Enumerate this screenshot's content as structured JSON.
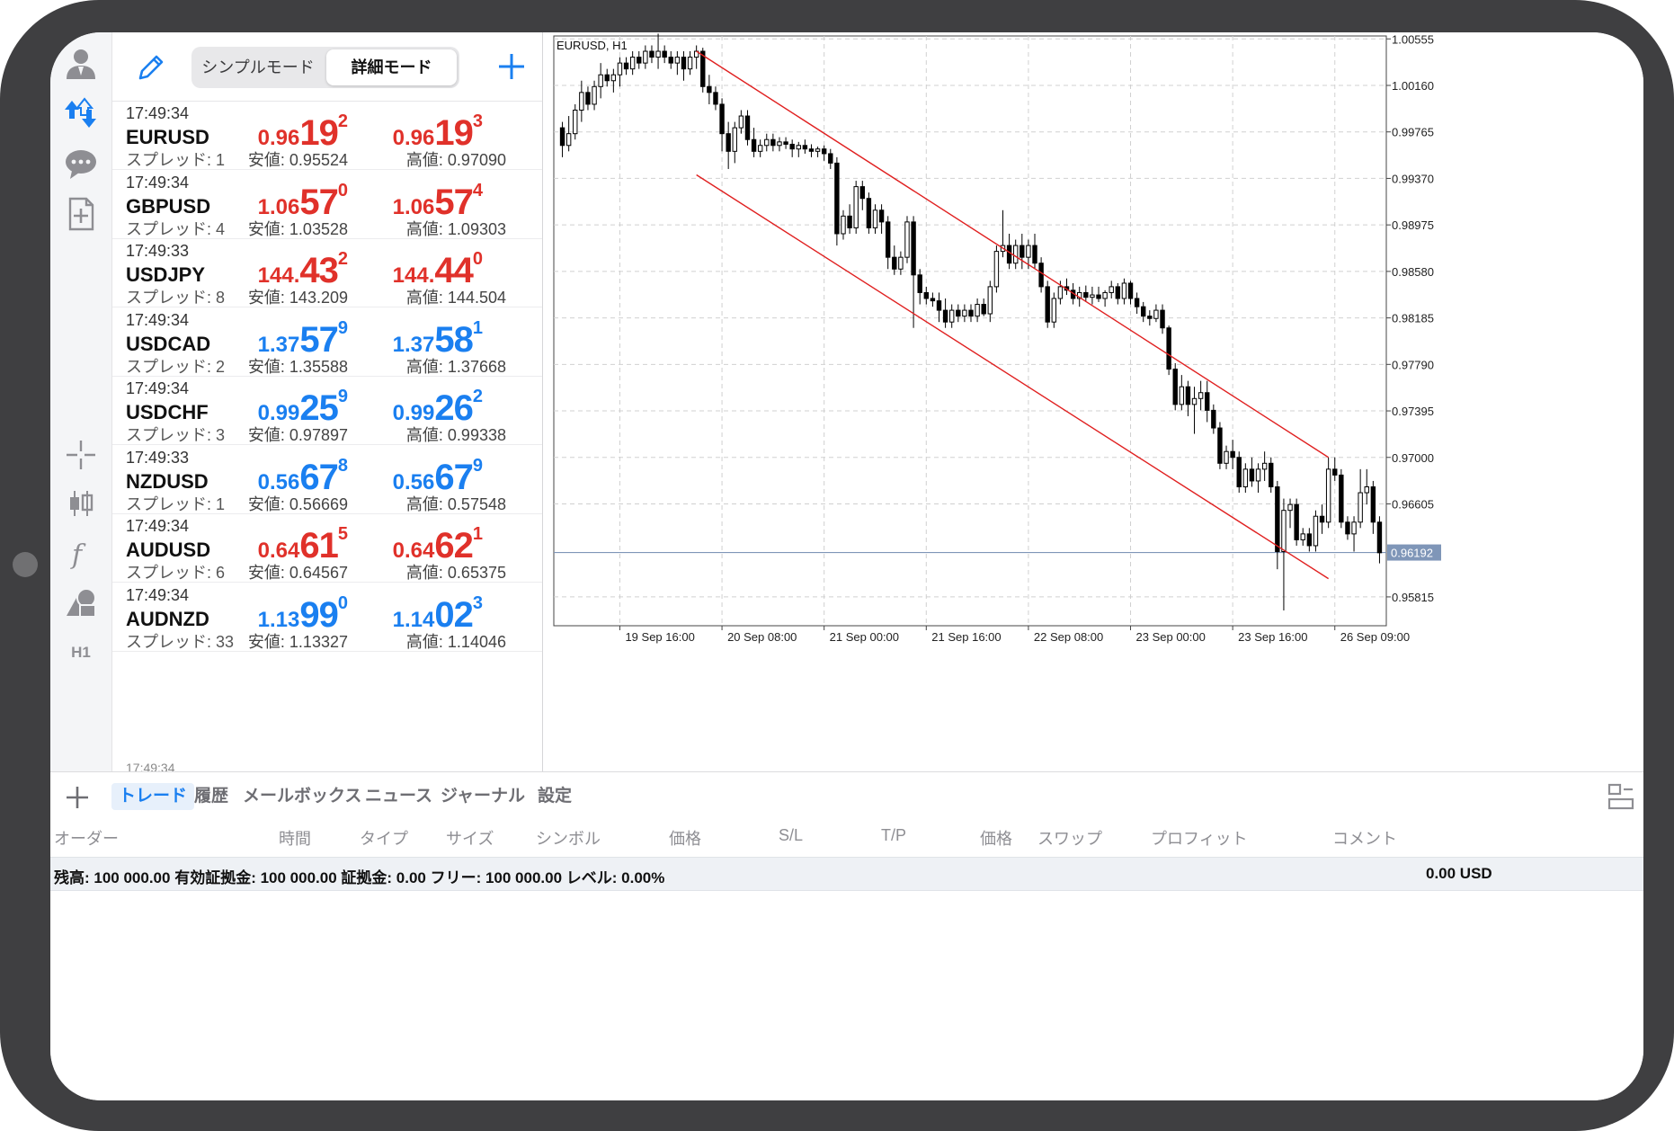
{
  "header": {
    "segment": {
      "simple_label": "シンプルモード",
      "detail_label": "詳細モード"
    }
  },
  "toolbar_icons": [
    "user-icon",
    "trade-arrows-icon",
    "chat-icon",
    "new-document-icon",
    "crosshair-icon",
    "candlestick-icon",
    "function-icon",
    "objects-icon",
    "timeframe-h1-icon"
  ],
  "toolbar": {
    "timeframe_label": "H1"
  },
  "quotes": [
    {
      "time": "17:49:34",
      "symbol": "EURUSD",
      "spread": "スプレッド: 1",
      "bid": {
        "pre": "0.96",
        "big": "19",
        "sup": "2"
      },
      "ask": {
        "pre": "0.96",
        "big": "19",
        "sup": "3"
      },
      "low": "安値: 0.95524",
      "high": "高値: 0.97090",
      "color": "red"
    },
    {
      "time": "17:49:34",
      "symbol": "GBPUSD",
      "spread": "スプレッド: 4",
      "bid": {
        "pre": "1.06",
        "big": "57",
        "sup": "0"
      },
      "ask": {
        "pre": "1.06",
        "big": "57",
        "sup": "4"
      },
      "low": "安値: 1.03528",
      "high": "高値: 1.09303",
      "color": "red"
    },
    {
      "time": "17:49:33",
      "symbol": "USDJPY",
      "spread": "スプレッド: 8",
      "bid": {
        "pre": "144.",
        "big": "43",
        "sup": "2"
      },
      "ask": {
        "pre": "144.",
        "big": "44",
        "sup": "0"
      },
      "low": "安値: 143.209",
      "high": "高値: 144.504",
      "color": "red"
    },
    {
      "time": "17:49:34",
      "symbol": "USDCAD",
      "spread": "スプレッド: 2",
      "bid": {
        "pre": "1.37",
        "big": "57",
        "sup": "9"
      },
      "ask": {
        "pre": "1.37",
        "big": "58",
        "sup": "1"
      },
      "low": "安値: 1.35588",
      "high": "高値: 1.37668",
      "color": "blue"
    },
    {
      "time": "17:49:34",
      "symbol": "USDCHF",
      "spread": "スプレッド: 3",
      "bid": {
        "pre": "0.99",
        "big": "25",
        "sup": "9"
      },
      "ask": {
        "pre": "0.99",
        "big": "26",
        "sup": "2"
      },
      "low": "安値: 0.97897",
      "high": "高値: 0.99338",
      "color": "blue"
    },
    {
      "time": "17:49:33",
      "symbol": "NZDUSD",
      "spread": "スプレッド: 1",
      "bid": {
        "pre": "0.56",
        "big": "67",
        "sup": "8"
      },
      "ask": {
        "pre": "0.56",
        "big": "67",
        "sup": "9"
      },
      "low": "安値: 0.56669",
      "high": "高値: 0.57548",
      "color": "blue"
    },
    {
      "time": "17:49:34",
      "symbol": "AUDUSD",
      "spread": "スプレッド: 6",
      "bid": {
        "pre": "0.64",
        "big": "61",
        "sup": "5"
      },
      "ask": {
        "pre": "0.64",
        "big": "62",
        "sup": "1"
      },
      "low": "安値: 0.64567",
      "high": "高値: 0.65375",
      "color": "red"
    },
    {
      "time": "17:49:34",
      "symbol": "AUDNZD",
      "spread": "スプレッド: 33",
      "bid": {
        "pre": "1.13",
        "big": "99",
        "sup": "0"
      },
      "ask": {
        "pre": "1.14",
        "big": "02",
        "sup": "3"
      },
      "low": "安値: 1.13327",
      "high": "高値: 1.14046",
      "color": "blue"
    }
  ],
  "partial_row_time": "17:49:34",
  "chart_data": {
    "type": "candlestick",
    "title": "EURUSD, H1",
    "y_ticks": [
      "1.00555",
      "1.00160",
      "0.99765",
      "0.99370",
      "0.98975",
      "0.98580",
      "0.98185",
      "0.97790",
      "0.97395",
      "0.97000",
      "0.96605",
      "0.96192",
      "0.95815"
    ],
    "ylim": [
      0.9557,
      1.0058
    ],
    "current_price": 0.96192,
    "current_price_label": "0.96192",
    "x_ticks": [
      "19 Sep 16:00",
      "20 Sep 08:00",
      "21 Sep 00:00",
      "21 Sep 16:00",
      "22 Sep 08:00",
      "23 Sep 00:00",
      "23 Sep 16:00",
      "26 Sep 09:00"
    ],
    "x_tick_index": [
      9,
      25,
      41,
      57,
      73,
      89,
      105,
      121
    ],
    "grid": true,
    "channel": [
      {
        "from": [
          21,
          1.0045
        ],
        "to": [
          120,
          0.97
        ]
      },
      {
        "from": [
          21,
          0.994
        ],
        "to": [
          120,
          0.9597
        ]
      }
    ],
    "candles": [
      [
        0.998,
        0.9985,
        0.9955,
        0.9965
      ],
      [
        0.9965,
        0.999,
        0.996,
        0.9975
      ],
      [
        0.9975,
        1.0,
        0.997,
        0.9995
      ],
      [
        0.9995,
        1.002,
        0.9985,
        1.001
      ],
      [
        1.001,
        1.0015,
        0.9995,
        1.0
      ],
      [
        1.0,
        1.002,
        0.9995,
        1.0015
      ],
      [
        1.0015,
        1.0035,
        1.0005,
        1.0025
      ],
      [
        1.0025,
        1.003,
        1.0015,
        1.002
      ],
      [
        1.002,
        1.003,
        1.001,
        1.0025
      ],
      [
        1.0025,
        1.004,
        1.0015,
        1.0035
      ],
      [
        1.0035,
        1.004,
        1.0025,
        1.003
      ],
      [
        1.003,
        1.0045,
        1.0025,
        1.004
      ],
      [
        1.004,
        1.0045,
        1.003,
        1.0035
      ],
      [
        1.0035,
        1.005,
        1.003,
        1.0045
      ],
      [
        1.0045,
        1.005,
        1.0035,
        1.004
      ],
      [
        1.004,
        1.006,
        1.003,
        1.0045
      ],
      [
        1.0045,
        1.005,
        1.0035,
        1.004
      ],
      [
        1.004,
        1.0045,
        1.003,
        1.0035
      ],
      [
        1.0035,
        1.0045,
        1.0025,
        1.004
      ],
      [
        1.004,
        1.0045,
        1.002,
        1.003
      ],
      [
        1.003,
        1.0045,
        1.0025,
        1.004
      ],
      [
        1.004,
        1.005,
        1.003,
        1.0045
      ],
      [
        1.0045,
        1.0048,
        1.001,
        1.0015
      ],
      [
        1.0015,
        1.0025,
        1.0,
        1.001
      ],
      [
        1.001,
        1.0015,
        0.9995,
        1.0
      ],
      [
        1.0,
        1.0005,
        0.996,
        0.9975
      ],
      [
        0.9975,
        0.9985,
        0.9945,
        0.996
      ],
      [
        0.996,
        0.9985,
        0.995,
        0.998
      ],
      [
        0.998,
        0.9995,
        0.9975,
        0.999
      ],
      [
        0.999,
        0.9995,
        0.9965,
        0.997
      ],
      [
        0.997,
        0.998,
        0.9955,
        0.996
      ],
      [
        0.996,
        0.997,
        0.9955,
        0.9965
      ],
      [
        0.9965,
        0.9975,
        0.996,
        0.997
      ],
      [
        0.997,
        0.9975,
        0.996,
        0.9965
      ],
      [
        0.9965,
        0.9972,
        0.996,
        0.9968
      ],
      [
        0.9968,
        0.9972,
        0.9962,
        0.9966
      ],
      [
        0.9966,
        0.997,
        0.9955,
        0.9962
      ],
      [
        0.9962,
        0.9968,
        0.9955,
        0.9965
      ],
      [
        0.9965,
        0.997,
        0.9958,
        0.9962
      ],
      [
        0.9962,
        0.9966,
        0.9955,
        0.996
      ],
      [
        0.996,
        0.9964,
        0.9955,
        0.9962
      ],
      [
        0.9962,
        0.9965,
        0.9952,
        0.9958
      ],
      [
        0.9958,
        0.9962,
        0.9945,
        0.995
      ],
      [
        0.995,
        0.9955,
        0.988,
        0.989
      ],
      [
        0.989,
        0.991,
        0.9885,
        0.9905
      ],
      [
        0.9905,
        0.9915,
        0.989,
        0.9895
      ],
      [
        0.9895,
        0.9935,
        0.989,
        0.993
      ],
      [
        0.993,
        0.9935,
        0.991,
        0.992
      ],
      [
        0.992,
        0.9925,
        0.989,
        0.9895
      ],
      [
        0.9895,
        0.9915,
        0.989,
        0.991
      ],
      [
        0.991,
        0.9915,
        0.989,
        0.99
      ],
      [
        0.99,
        0.9905,
        0.986,
        0.987
      ],
      [
        0.987,
        0.988,
        0.9855,
        0.986
      ],
      [
        0.986,
        0.9875,
        0.9855,
        0.987
      ],
      [
        0.987,
        0.9905,
        0.9865,
        0.99
      ],
      [
        0.99,
        0.9905,
        0.981,
        0.9855
      ],
      [
        0.9855,
        0.986,
        0.983,
        0.984
      ],
      [
        0.984,
        0.9845,
        0.983,
        0.9835
      ],
      [
        0.9835,
        0.984,
        0.9828,
        0.9833
      ],
      [
        0.9833,
        0.984,
        0.9815,
        0.9825
      ],
      [
        0.9825,
        0.9835,
        0.981,
        0.9815
      ],
      [
        0.9815,
        0.983,
        0.981,
        0.9825
      ],
      [
        0.9825,
        0.983,
        0.9815,
        0.982
      ],
      [
        0.982,
        0.983,
        0.9815,
        0.9825
      ],
      [
        0.9825,
        0.983,
        0.9815,
        0.982
      ],
      [
        0.982,
        0.9835,
        0.9815,
        0.983
      ],
      [
        0.983,
        0.9835,
        0.982,
        0.9822
      ],
      [
        0.9822,
        0.985,
        0.9815,
        0.9845
      ],
      [
        0.9845,
        0.988,
        0.984,
        0.9875
      ],
      [
        0.9875,
        0.991,
        0.987,
        0.988
      ],
      [
        0.988,
        0.989,
        0.986,
        0.9865
      ],
      [
        0.9865,
        0.9885,
        0.986,
        0.988
      ],
      [
        0.988,
        0.989,
        0.986,
        0.987
      ],
      [
        0.987,
        0.9885,
        0.986,
        0.988
      ],
      [
        0.988,
        0.989,
        0.986,
        0.9865
      ],
      [
        0.9865,
        0.987,
        0.984,
        0.9845
      ],
      [
        0.9845,
        0.985,
        0.981,
        0.9815
      ],
      [
        0.9815,
        0.984,
        0.981,
        0.9835
      ],
      [
        0.9835,
        0.985,
        0.983,
        0.9845
      ],
      [
        0.9845,
        0.9852,
        0.9838,
        0.9842
      ],
      [
        0.9842,
        0.9848,
        0.983,
        0.9835
      ],
      [
        0.9835,
        0.9845,
        0.9828,
        0.984
      ],
      [
        0.984,
        0.9846,
        0.9832,
        0.9836
      ],
      [
        0.9836,
        0.9845,
        0.983,
        0.9838
      ],
      [
        0.9838,
        0.9845,
        0.9832,
        0.9835
      ],
      [
        0.9835,
        0.9842,
        0.9828,
        0.984
      ],
      [
        0.984,
        0.985,
        0.9835,
        0.9845
      ],
      [
        0.9845,
        0.9848,
        0.983,
        0.9835
      ],
      [
        0.9835,
        0.9852,
        0.983,
        0.9848
      ],
      [
        0.9848,
        0.985,
        0.983,
        0.9835
      ],
      [
        0.9835,
        0.984,
        0.9822,
        0.9828
      ],
      [
        0.9828,
        0.9832,
        0.9815,
        0.982
      ],
      [
        0.982,
        0.9825,
        0.9812,
        0.9818
      ],
      [
        0.9818,
        0.983,
        0.9815,
        0.9825
      ],
      [
        0.9825,
        0.983,
        0.9805,
        0.981
      ],
      [
        0.981,
        0.9812,
        0.977,
        0.9775
      ],
      [
        0.9775,
        0.978,
        0.974,
        0.9745
      ],
      [
        0.9745,
        0.977,
        0.974,
        0.976
      ],
      [
        0.976,
        0.9765,
        0.9735,
        0.9745
      ],
      [
        0.9745,
        0.976,
        0.972,
        0.975
      ],
      [
        0.975,
        0.9765,
        0.974,
        0.9755
      ],
      [
        0.9755,
        0.9765,
        0.973,
        0.974
      ],
      [
        0.974,
        0.9745,
        0.972,
        0.9725
      ],
      [
        0.9725,
        0.973,
        0.969,
        0.9695
      ],
      [
        0.9695,
        0.971,
        0.969,
        0.9705
      ],
      [
        0.9705,
        0.9715,
        0.969,
        0.97
      ],
      [
        0.97,
        0.9705,
        0.967,
        0.9675
      ],
      [
        0.9675,
        0.9695,
        0.967,
        0.969
      ],
      [
        0.969,
        0.97,
        0.9675,
        0.968
      ],
      [
        0.968,
        0.9695,
        0.967,
        0.969
      ],
      [
        0.969,
        0.9705,
        0.968,
        0.9695
      ],
      [
        0.9695,
        0.97,
        0.967,
        0.9675
      ],
      [
        0.9675,
        0.968,
        0.9605,
        0.962
      ],
      [
        0.962,
        0.9665,
        0.957,
        0.9655
      ],
      [
        0.9655,
        0.9665,
        0.964,
        0.966
      ],
      [
        0.966,
        0.9665,
        0.9625,
        0.963
      ],
      [
        0.963,
        0.964,
        0.9625,
        0.9635
      ],
      [
        0.9635,
        0.964,
        0.962,
        0.9625
      ],
      [
        0.9625,
        0.9655,
        0.962,
        0.965
      ],
      [
        0.965,
        0.966,
        0.9635,
        0.9645
      ],
      [
        0.9645,
        0.97,
        0.964,
        0.969
      ],
      [
        0.969,
        0.97,
        0.968,
        0.9685
      ],
      [
        0.9685,
        0.969,
        0.964,
        0.9645
      ],
      [
        0.9645,
        0.965,
        0.963,
        0.9635
      ],
      [
        0.9635,
        0.965,
        0.962,
        0.9645
      ],
      [
        0.9645,
        0.969,
        0.964,
        0.967
      ],
      [
        0.967,
        0.969,
        0.966,
        0.9675
      ],
      [
        0.9675,
        0.968,
        0.9635,
        0.9645
      ],
      [
        0.9645,
        0.965,
        0.961,
        0.9619
      ]
    ]
  },
  "bottom": {
    "tabs": [
      "トレード",
      "履歴",
      "メールボックス",
      "ニュース",
      "ジャーナル",
      "設定"
    ],
    "columns": [
      "オーダー",
      "時間",
      "タイプ",
      "サイズ",
      "シンボル",
      "価格",
      "S/L",
      "T/P",
      "価格",
      "スワップ",
      "プロフィット",
      "コメント"
    ],
    "summary": "残高: 100 000.00 有効証拠金: 100 000.00 証拠金: 0.00 フリー: 100 000.00 レベル: 0.00%",
    "profit": "0.00  USD"
  }
}
